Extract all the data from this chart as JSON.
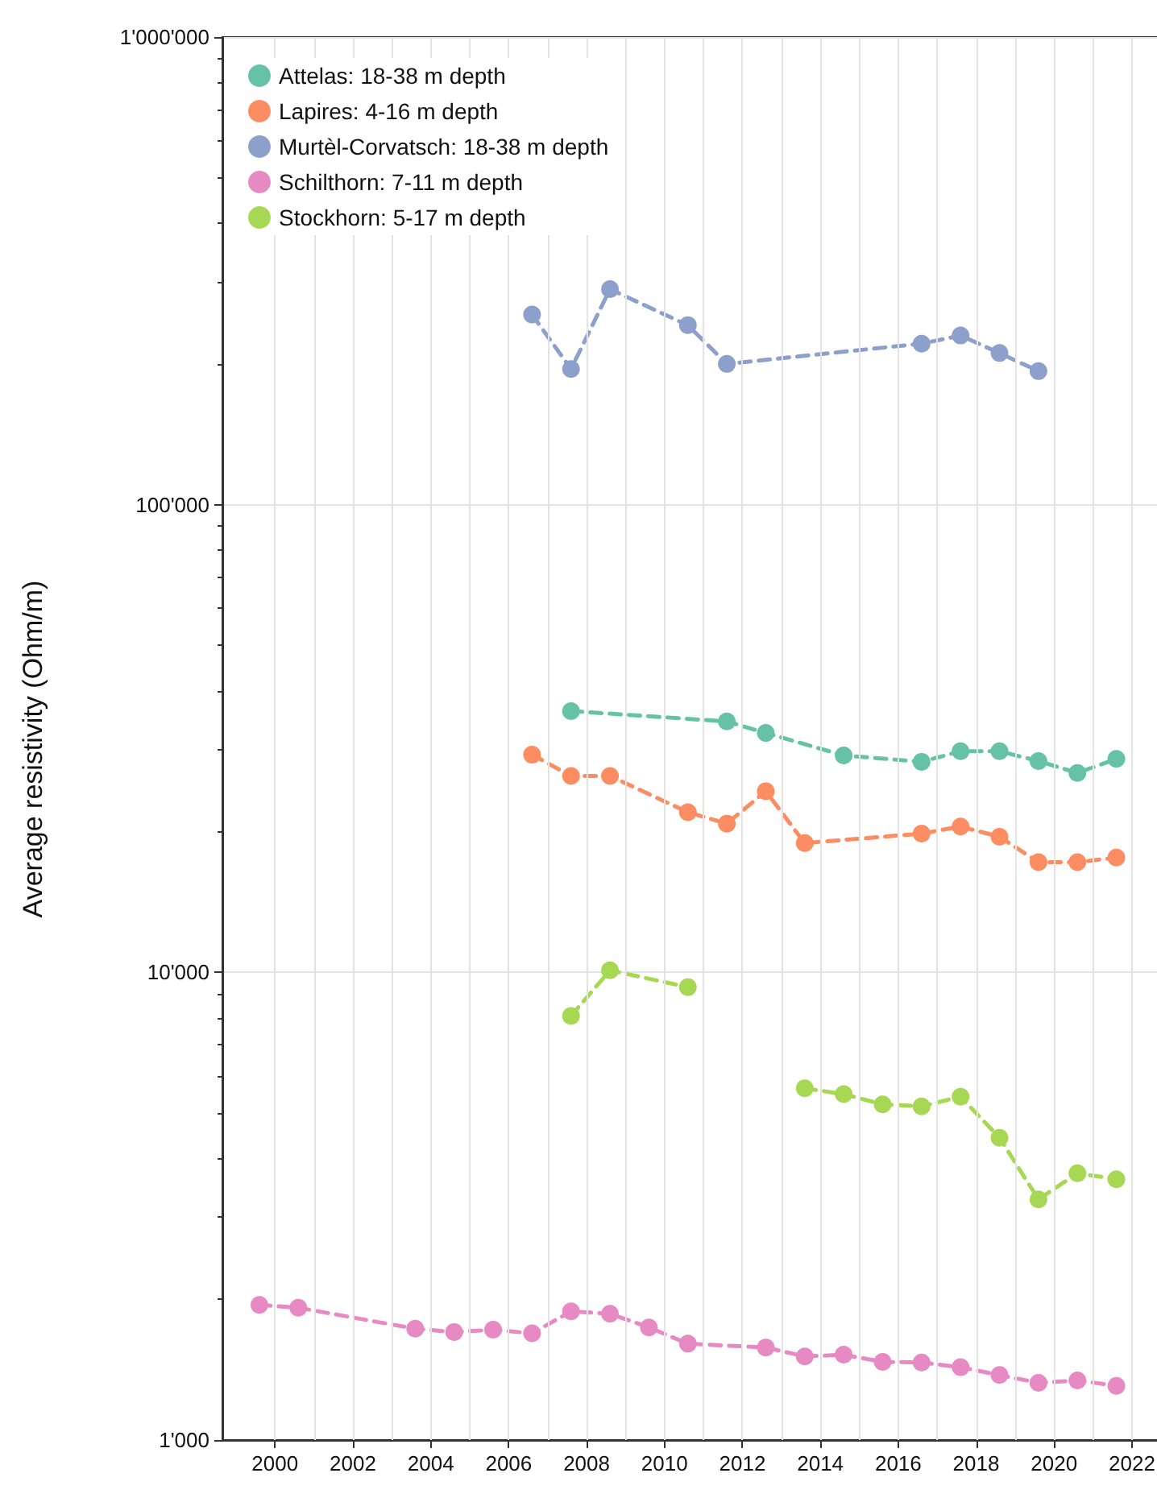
{
  "chart_data": {
    "type": "line",
    "ylabel": "Average resistivity (Ohm/m)",
    "log": "y",
    "grid": true,
    "legend": "top left",
    "marker": "circle",
    "line_style": "dashed",
    "xlim": [
      1998.65,
      2022.85
    ],
    "xticks": [
      2000,
      {
        "value": 2001,
        "label": null
      },
      2002,
      {
        "value": 2003,
        "label": null
      },
      2004,
      {
        "value": 2005,
        "label": null
      },
      2006,
      {
        "value": 2007,
        "label": null
      },
      2008,
      {
        "value": 2009,
        "label": null
      },
      2010,
      {
        "value": 2011,
        "label": null
      },
      2012,
      {
        "value": 2013,
        "label": null
      },
      2014,
      {
        "value": 2015,
        "label": null
      },
      2016,
      {
        "value": 2017,
        "label": null
      },
      2018,
      {
        "value": 2019,
        "label": null
      },
      2020,
      {
        "value": 2021,
        "label": null
      },
      2022
    ],
    "ylim": [
      1000,
      1000000
    ],
    "yticks": [
      {
        "value": 1000,
        "label": "1'000"
      },
      {
        "value": 10000,
        "label": "10'000"
      },
      {
        "value": 100000,
        "label": "100'000"
      },
      {
        "value": 1000000,
        "label": "1'000'000"
      }
    ],
    "series": [
      {
        "name": "Attelas: 18-38 m depth",
        "color": "#66c2a5",
        "x": [
          2007.6,
          2011.6,
          2012.6,
          2014.6,
          2016.6,
          2017.6,
          2018.6,
          2019.6,
          2020.6,
          2021.6
        ],
        "values": [
          36200,
          34400,
          32500,
          29100,
          28200,
          29700,
          29700,
          28300,
          26700,
          28600
        ]
      },
      {
        "name": "Lapires: 4-16 m depth",
        "color": "#fc8d62",
        "x": [
          2006.6,
          2007.6,
          2008.6,
          2010.6,
          2011.6,
          2012.6,
          2013.6,
          2016.6,
          2017.6,
          2018.6,
          2019.6,
          2020.6,
          2021.6
        ],
        "values": [
          29200,
          26300,
          26300,
          22000,
          20800,
          24400,
          18900,
          19800,
          20500,
          19500,
          17200,
          17200,
          17600
        ]
      },
      {
        "name": "Murtèl-Corvatsch: 18-38 m depth",
        "color": "#8da0cb",
        "x": [
          2006.6,
          2007.6,
          2008.6,
          2010.6,
          2011.6,
          2016.6,
          2017.6,
          2018.6,
          2019.6
        ],
        "values": [
          255000,
          195000,
          289000,
          242000,
          200000,
          221000,
          230000,
          211000,
          193000
        ]
      },
      {
        "name": "Schilthorn: 7-11 m depth",
        "color": "#e78ac3",
        "x": [
          1999.6,
          2000.6,
          2003.6,
          2004.6,
          2005.6,
          2006.6,
          2007.6,
          2008.6,
          2009.6,
          2010.6,
          2012.6,
          2013.6,
          2014.6,
          2015.6,
          2016.6,
          2017.6,
          2018.6,
          2019.6,
          2020.6,
          2021.6
        ],
        "values": [
          1945,
          1918,
          1730,
          1702,
          1721,
          1691,
          1884,
          1862,
          1741,
          1607,
          1577,
          1509,
          1522,
          1469,
          1465,
          1431,
          1377,
          1325,
          1341,
          1306
        ]
      },
      {
        "name": "Stockhorn: 5-17 m depth",
        "color": "#a6d854",
        "x": [
          2007.6,
          2008.6,
          2010.6,
          2012.1,
          2013.6,
          2014.6,
          2015.6,
          2016.6,
          2017.6,
          2018.6,
          2019.6,
          2020.6,
          2021.6
        ],
        "values": [
          8070,
          10100,
          9300,
          null,
          5650,
          5490,
          5220,
          5170,
          5420,
          4430,
          3270,
          3720,
          3610
        ]
      }
    ]
  }
}
